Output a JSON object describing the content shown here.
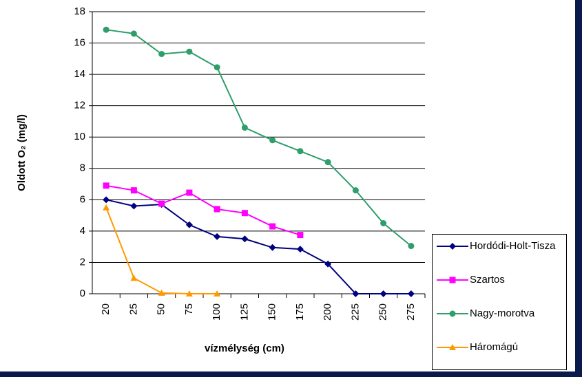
{
  "chart_data": {
    "type": "line",
    "y_label": "Oldott O₂ (mg/l)",
    "x_label": "vízmélység (cm)",
    "categories": [
      "20",
      "25",
      "50",
      "75",
      "100",
      "125",
      "150",
      "175",
      "200",
      "225",
      "250",
      "275"
    ],
    "series": [
      {
        "name": "Hordódi-Holt-Tisza",
        "color": "#000080",
        "marker": "diamond",
        "values": [
          6.0,
          5.6,
          5.7,
          4.4,
          3.65,
          3.5,
          2.95,
          2.85,
          1.9,
          0,
          0,
          0
        ]
      },
      {
        "name": "Szartos",
        "color": "#ff00ff",
        "marker": "square",
        "values": [
          6.9,
          6.6,
          5.75,
          6.45,
          5.4,
          5.15,
          4.3,
          3.75,
          null,
          null,
          null,
          null
        ]
      },
      {
        "name": "Nagy-morotva",
        "color": "#2e9e6a",
        "marker": "circle",
        "values": [
          16.85,
          16.6,
          15.3,
          15.45,
          14.45,
          10.6,
          9.8,
          9.1,
          8.4,
          6.6,
          4.5,
          3.05
        ]
      },
      {
        "name": "Háromágú",
        "color": "#ff9900",
        "marker": "triangle",
        "values": [
          5.5,
          1.0,
          0.05,
          0,
          0,
          null,
          null,
          null,
          null,
          null,
          null,
          null
        ]
      }
    ],
    "ylim": [
      0,
      18
    ],
    "yticks": [
      0,
      2,
      4,
      6,
      8,
      10,
      12,
      14,
      16,
      18
    ],
    "grid": true,
    "legend": "bottom-right"
  }
}
